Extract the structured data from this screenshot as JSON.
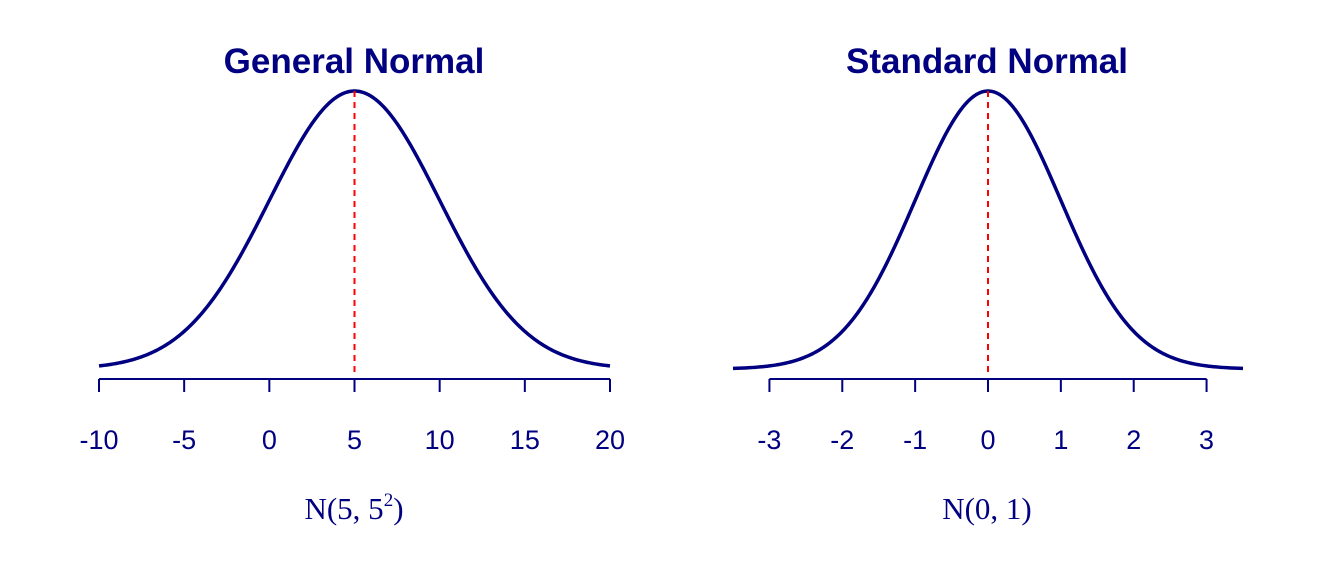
{
  "colors": {
    "curve": "#000080",
    "axis": "#000080",
    "text": "#000080",
    "mean_line": "#ff0000",
    "background": "#ffffff"
  },
  "chart_data": [
    {
      "type": "line",
      "title": "General Normal",
      "xlabel": {
        "prefix": "N(5, 5",
        "superscript": "2",
        "suffix": ")"
      },
      "ylabel": "",
      "distribution": {
        "family": "normal",
        "mean": 5,
        "sd": 5
      },
      "xlim": [
        -10,
        20
      ],
      "ticks": [
        -10,
        -5,
        0,
        5,
        10,
        15,
        20
      ],
      "tick_labels": [
        "-10",
        "-5",
        "0",
        "5",
        "10",
        "15",
        "20"
      ],
      "mean_line": {
        "x": 5,
        "style": "dashed"
      },
      "grid": false,
      "legend": "none"
    },
    {
      "type": "line",
      "title": "Standard Normal",
      "xlabel": {
        "prefix": "N(0, 1)",
        "superscript": "",
        "suffix": ""
      },
      "ylabel": "",
      "distribution": {
        "family": "normal",
        "mean": 0,
        "sd": 1
      },
      "xlim": [
        -3.5,
        3.5
      ],
      "ticks": [
        -3,
        -2,
        -1,
        0,
        1,
        2,
        3
      ],
      "tick_labels": [
        "-3",
        "-2",
        "-1",
        "0",
        "1",
        "2",
        "3"
      ],
      "mean_line": {
        "x": 0,
        "style": "dashed"
      },
      "grid": false,
      "legend": "none"
    }
  ]
}
